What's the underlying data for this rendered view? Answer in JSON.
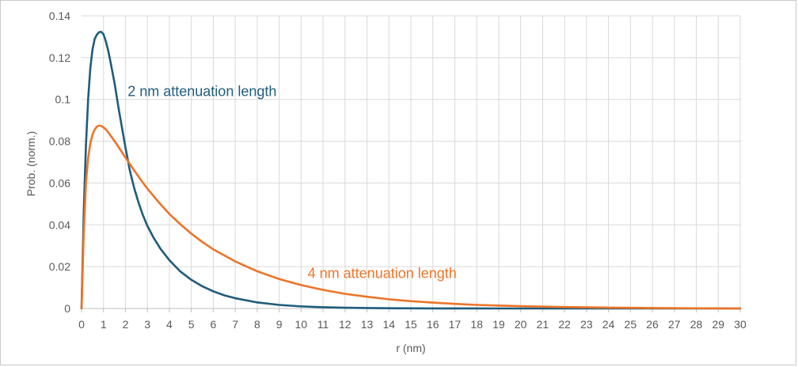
{
  "chart_data": {
    "type": "line",
    "xlabel": "r (nm)",
    "ylabel": "Prob. (norm.)",
    "xlim": [
      0,
      30
    ],
    "ylim": [
      0,
      0.14
    ],
    "x_ticks": [
      0,
      1,
      2,
      3,
      4,
      5,
      6,
      7,
      8,
      9,
      10,
      11,
      12,
      13,
      14,
      15,
      16,
      17,
      18,
      19,
      20,
      21,
      22,
      23,
      24,
      25,
      26,
      27,
      28,
      29,
      30
    ],
    "y_ticks": [
      0,
      0.02,
      0.04,
      0.06,
      0.08,
      0.1,
      0.12,
      0.14
    ],
    "y_tick_labels": [
      "0",
      "0.02",
      "0.04",
      "0.06",
      "0.08",
      "0.1",
      "0.12",
      "0.14"
    ],
    "grid": true,
    "colors": {
      "series_2nm": "#1f5c7c",
      "series_4nm": "#ec7428",
      "grid": "#d9d9d9",
      "axis": "#bfbfbf",
      "text": "#595959"
    },
    "series": [
      {
        "name": "2 nm attenuation length",
        "color": "#1f5c7c",
        "x": [
          0,
          0.1,
          0.2,
          0.3,
          0.4,
          0.5,
          0.6,
          0.7,
          0.8,
          0.9,
          1.0,
          1.1,
          1.2,
          1.3,
          1.4,
          1.5,
          1.6,
          1.7,
          1.8,
          1.9,
          2.0,
          2.2,
          2.4,
          2.6,
          2.8,
          3.0,
          3.3,
          3.6,
          4.0,
          4.5,
          5.0,
          5.5,
          6.0,
          6.5,
          7.0,
          8.0,
          9.0,
          10.0,
          11.0,
          12.0,
          13.0,
          14.0,
          15.0,
          16.0,
          18.0,
          20.0,
          22.0,
          25.0,
          30.0
        ],
        "y": [
          0.0,
          0.046,
          0.078,
          0.1,
          0.115,
          0.124,
          0.129,
          0.131,
          0.1322,
          0.1323,
          0.1312,
          0.128,
          0.124,
          0.119,
          0.1135,
          0.108,
          0.1015,
          0.095,
          0.089,
          0.083,
          0.077,
          0.066,
          0.0575,
          0.0505,
          0.0445,
          0.0395,
          0.0335,
          0.0285,
          0.0231,
          0.0177,
          0.0137,
          0.0106,
          0.0082,
          0.0063,
          0.0049,
          0.0029,
          0.0017,
          0.001,
          0.0006,
          0.00035,
          0.0002,
          0.00012,
          7e-05,
          4e-05,
          1e-05,
          0.0,
          0.0,
          0.0,
          0.0
        ]
      },
      {
        "name": "4 nm attenuation length",
        "color": "#ec7428",
        "x": [
          0,
          0.1,
          0.2,
          0.3,
          0.4,
          0.5,
          0.6,
          0.7,
          0.8,
          0.9,
          1.0,
          1.1,
          1.2,
          1.4,
          1.6,
          1.8,
          2.0,
          2.2,
          2.4,
          2.6,
          2.8,
          3.0,
          3.5,
          4.0,
          4.5,
          5.0,
          5.5,
          6.0,
          7.0,
          8.0,
          9.0,
          10.0,
          11.0,
          12.0,
          13.0,
          14.0,
          15.0,
          16.0,
          17.0,
          18.0,
          19.0,
          20.0,
          22.0,
          24.0,
          26.0,
          28.0,
          30.0
        ],
        "y": [
          0.0,
          0.036,
          0.06,
          0.072,
          0.079,
          0.0832,
          0.0856,
          0.087,
          0.0875,
          0.0873,
          0.0866,
          0.0857,
          0.0845,
          0.0816,
          0.0786,
          0.0754,
          0.0722,
          0.0691,
          0.066,
          0.063,
          0.0601,
          0.0573,
          0.051,
          0.0452,
          0.0403,
          0.0358,
          0.0318,
          0.0283,
          0.0225,
          0.0178,
          0.0141,
          0.0112,
          0.0089,
          0.007,
          0.0056,
          0.0044,
          0.0035,
          0.0028,
          0.0022,
          0.0017,
          0.0014,
          0.0011,
          0.0007,
          0.0004,
          0.0002,
          0.0001,
          0.0
        ]
      }
    ],
    "annotations": [
      {
        "text": "2 nm attenuation length",
        "color": "#1f5c7c",
        "x": 2.1,
        "y": 0.1
      },
      {
        "text": "4 nm attenuation length",
        "color": "#ec7428",
        "x": 10.3,
        "y": 0.013
      }
    ]
  }
}
